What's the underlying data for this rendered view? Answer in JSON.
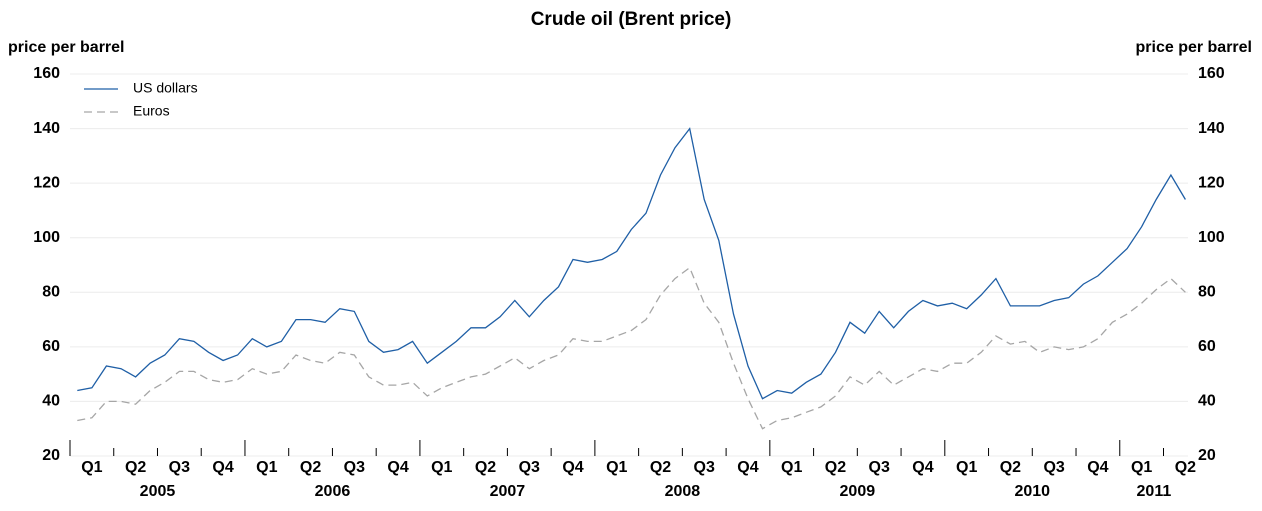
{
  "chart_data": {
    "type": "line",
    "title": "Crude oil (Brent price)",
    "ylabel": "price per barrel",
    "y2label": "price per barrel",
    "x": [
      2005.042,
      2005.125,
      2005.208,
      2005.292,
      2005.375,
      2005.458,
      2005.542,
      2005.625,
      2005.708,
      2005.792,
      2005.875,
      2005.958,
      2006.042,
      2006.125,
      2006.208,
      2006.292,
      2006.375,
      2006.458,
      2006.542,
      2006.625,
      2006.708,
      2006.792,
      2006.875,
      2006.958,
      2007.042,
      2007.125,
      2007.208,
      2007.292,
      2007.375,
      2007.458,
      2007.542,
      2007.625,
      2007.708,
      2007.792,
      2007.875,
      2007.958,
      2008.042,
      2008.125,
      2008.208,
      2008.292,
      2008.375,
      2008.458,
      2008.542,
      2008.625,
      2008.708,
      2008.792,
      2008.875,
      2008.958,
      2009.042,
      2009.125,
      2009.208,
      2009.292,
      2009.375,
      2009.458,
      2009.542,
      2009.625,
      2009.708,
      2009.792,
      2009.875,
      2009.958,
      2010.042,
      2010.125,
      2010.208,
      2010.292,
      2010.375,
      2010.458,
      2010.542,
      2010.625,
      2010.708,
      2010.792,
      2010.875,
      2010.958,
      2011.042,
      2011.125,
      2011.208,
      2011.292,
      2011.375
    ],
    "series": [
      {
        "name": "US dollars",
        "color": "#1f5fa6",
        "dash": false,
        "values": [
          44,
          45,
          53,
          52,
          49,
          54,
          57,
          63,
          62,
          58,
          55,
          57,
          63,
          60,
          62,
          70,
          70,
          69,
          74,
          73,
          62,
          58,
          59,
          62,
          54,
          58,
          62,
          67,
          67,
          71,
          77,
          71,
          77,
          82,
          92,
          91,
          92,
          95,
          103,
          109,
          123,
          133,
          140,
          114,
          99,
          72,
          53,
          41,
          44,
          43,
          47,
          50,
          58,
          69,
          65,
          73,
          67,
          73,
          77,
          75,
          76,
          74,
          79,
          85,
          75,
          75,
          75,
          77,
          78,
          83,
          86,
          91,
          96,
          104,
          114,
          123,
          114
        ]
      },
      {
        "name": "Euros",
        "color": "#a6a6a6",
        "dash": true,
        "values": [
          33,
          34,
          40,
          40,
          39,
          44,
          47,
          51,
          51,
          48,
          47,
          48,
          52,
          50,
          51,
          57,
          55,
          54,
          58,
          57,
          49,
          46,
          46,
          47,
          42,
          45,
          47,
          49,
          50,
          53,
          56,
          52,
          55,
          57,
          63,
          62,
          62,
          64,
          66,
          70,
          79,
          85,
          89,
          76,
          69,
          54,
          41,
          30,
          33,
          34,
          36,
          38,
          42,
          49,
          46,
          51,
          46,
          49,
          52,
          51,
          54,
          54,
          58,
          64,
          61,
          62,
          58,
          60,
          59,
          60,
          63,
          69,
          72,
          76,
          81,
          85,
          80
        ]
      }
    ],
    "xlim": [
      2005,
      2011.39
    ],
    "xticks": [
      {
        "value": 2005,
        "label": "Q1"
      },
      {
        "value": 2005.25,
        "label": "Q2"
      },
      {
        "value": 2005.5,
        "label": "Q3"
      },
      {
        "value": 2005.75,
        "label": "Q4"
      },
      {
        "value": 2006,
        "label": "Q1"
      },
      {
        "value": 2006.25,
        "label": "Q2"
      },
      {
        "value": 2006.5,
        "label": "Q3"
      },
      {
        "value": 2006.75,
        "label": "Q4"
      },
      {
        "value": 2007,
        "label": "Q1"
      },
      {
        "value": 2007.25,
        "label": "Q2"
      },
      {
        "value": 2007.5,
        "label": "Q3"
      },
      {
        "value": 2007.75,
        "label": "Q4"
      },
      {
        "value": 2008,
        "label": "Q1"
      },
      {
        "value": 2008.25,
        "label": "Q2"
      },
      {
        "value": 2008.5,
        "label": "Q3"
      },
      {
        "value": 2008.75,
        "label": "Q4"
      },
      {
        "value": 2009,
        "label": "Q1"
      },
      {
        "value": 2009.25,
        "label": "Q2"
      },
      {
        "value": 2009.5,
        "label": "Q3"
      },
      {
        "value": 2009.75,
        "label": "Q4"
      },
      {
        "value": 2010,
        "label": "Q1"
      },
      {
        "value": 2010.25,
        "label": "Q2"
      },
      {
        "value": 2010.5,
        "label": "Q3"
      },
      {
        "value": 2010.75,
        "label": "Q4"
      },
      {
        "value": 2011,
        "label": "Q1"
      },
      {
        "value": 2011.25,
        "label": "Q2"
      }
    ],
    "years": [
      2005,
      2006,
      2007,
      2008,
      2009,
      2010,
      2011
    ],
    "ylim": [
      20,
      160
    ],
    "yticks": [
      20,
      40,
      60,
      80,
      100,
      120,
      140,
      160
    ],
    "y2lim": [
      20,
      160
    ],
    "y2ticks": [
      20,
      40,
      60,
      80,
      100,
      120,
      140,
      160
    ],
    "grid": true
  }
}
